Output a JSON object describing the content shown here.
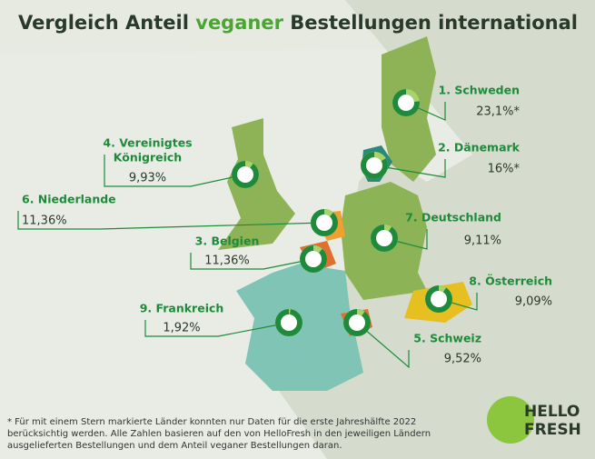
{
  "header": {
    "title": [
      "Vergleich Anteil ",
      "veganer",
      " Bestellungen international"
    ]
  },
  "countries": [
    {
      "label": [
        "1. Schweden"
      ],
      "value": 23.1,
      "value_label": "23,1%*"
    },
    {
      "label": [
        "2. Dänemark"
      ],
      "value": 16,
      "value_label": "16%*"
    },
    {
      "label": [
        "3. Belgien"
      ],
      "value": 11.36,
      "value_label": "11,36%"
    },
    {
      "label": [
        "4. Vereinigtes",
        "Königreich"
      ],
      "value": 9.93,
      "value_label": "9,93%"
    },
    {
      "label": [
        "5. Schweiz"
      ],
      "value": 9.52,
      "value_label": "9,52%"
    },
    {
      "label": [
        "6. Niederlande"
      ],
      "value": 11.36,
      "value_label": "11,36%"
    },
    {
      "label": [
        "7. Deutschland"
      ],
      "value": 9.11,
      "value_label": "9,11%"
    },
    {
      "label": [
        "8. Österreich"
      ],
      "value": 9.09,
      "value_label": "9,09%"
    },
    {
      "label": [
        "9. Frankreich"
      ],
      "value": 1.92,
      "value_label": "1,92%"
    }
  ],
  "footnote": "* Für mit einem Stern markierte Länder konnten nur Daten für die erste Jahreshälfte 2022 berücksichtig werden. Alle Zahlen basieren auf den von HelloFresh in den jeweiligen Ländern ausgelieferten Bestellungen und dem Anteil veganer Bestellungen daran.",
  "logo": [
    "HELLO",
    "FRESH"
  ]
}
